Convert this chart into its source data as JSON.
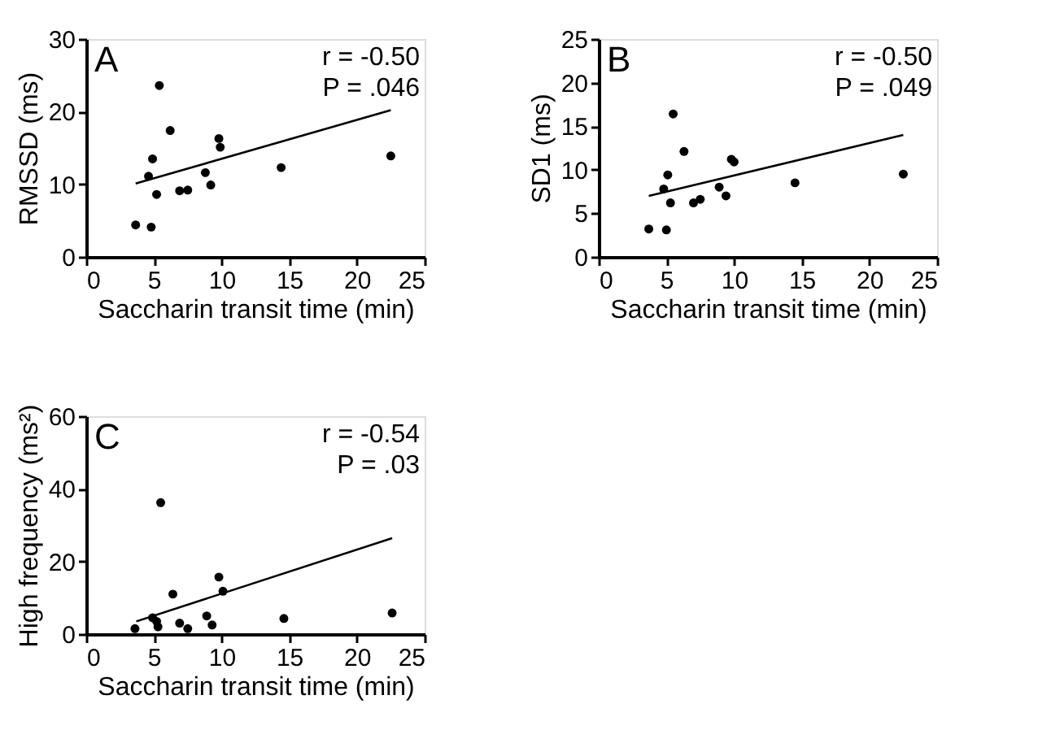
{
  "chart_data": [
    {
      "type": "scatter",
      "xlabel": "Saccharin transit time (min)",
      "ylabel": "RMSSD (ms)",
      "annotations": [
        "A",
        "r = -0.50",
        "P = .046"
      ],
      "xlim": [
        0,
        25
      ],
      "xticks": [
        0,
        5,
        10,
        15,
        20,
        25
      ],
      "ylim": [
        0,
        30
      ],
      "yticks": [
        0,
        10,
        20,
        30
      ],
      "grid": false,
      "series": [
        {
          "marker": "circle",
          "color": "#000000",
          "x": [
            3.65,
            4.8,
            4.6,
            4.9,
            5.2,
            5.4,
            6.2,
            6.9,
            7.5,
            8.8,
            9.2,
            9.8,
            9.9,
            14.4,
            22.5
          ],
          "values": [
            4.4,
            4.1,
            11.1,
            13.5,
            8.6,
            23.6,
            17.4,
            9.1,
            9.2,
            11.6,
            9.9,
            16.3,
            15.1,
            12.3,
            13.9
          ]
        },
        {
          "type": "line",
          "color": "#000000",
          "x": [
            3.65,
            22.5
          ],
          "values": [
            10.1,
            20.2
          ]
        }
      ]
    },
    {
      "type": "scatter",
      "xlabel": "Saccharin transit time (min)",
      "ylabel": "SD1 (ms)",
      "annotations": [
        "B",
        "r = -0.50",
        "P = .049"
      ],
      "xlim": [
        0,
        25
      ],
      "xticks": [
        0,
        5,
        10,
        15,
        20,
        25
      ],
      "ylim": [
        0,
        25
      ],
      "yticks": [
        0,
        5,
        10,
        15,
        20,
        25
      ],
      "grid": false,
      "series": [
        {
          "marker": "circle",
          "color": "#000000",
          "x": [
            3.7,
            5.0,
            4.8,
            5.1,
            5.3,
            5.5,
            6.3,
            7.0,
            7.5,
            8.9,
            9.4,
            9.8,
            10.0,
            14.5,
            22.5
          ],
          "values": [
            3.2,
            3.1,
            7.8,
            9.4,
            6.2,
            16.4,
            12.1,
            6.2,
            6.6,
            8.0,
            7.0,
            11.2,
            10.9,
            8.5,
            9.5
          ]
        },
        {
          "type": "line",
          "color": "#000000",
          "x": [
            3.7,
            22.5
          ],
          "values": [
            7.0,
            14.0
          ]
        }
      ]
    },
    {
      "type": "scatter",
      "xlabel": "Saccharin transit time (min)",
      "ylabel": "High frequency (ms²)",
      "annotations": [
        "C",
        "r = -0.54",
        "P = .03"
      ],
      "xlim": [
        0,
        25
      ],
      "xticks": [
        0,
        5,
        10,
        15,
        20,
        25
      ],
      "ylim": [
        0,
        60
      ],
      "yticks": [
        0,
        20,
        40,
        60
      ],
      "grid": false,
      "series": [
        {
          "marker": "circle",
          "color": "#000000",
          "x": [
            3.6,
            4.9,
            5.2,
            5.3,
            5.5,
            6.4,
            6.9,
            7.5,
            8.9,
            9.3,
            9.8,
            10.1,
            14.6,
            22.6
          ],
          "values": [
            1.5,
            4.5,
            3.5,
            2.0,
            36.2,
            11,
            3.0,
            1.5,
            5.0,
            2.5,
            15.7,
            11.8,
            4.3,
            5.8
          ]
        },
        {
          "type": "line",
          "color": "#000000",
          "x": [
            3.7,
            22.6
          ],
          "values": [
            3.5,
            26.4
          ]
        }
      ]
    }
  ]
}
